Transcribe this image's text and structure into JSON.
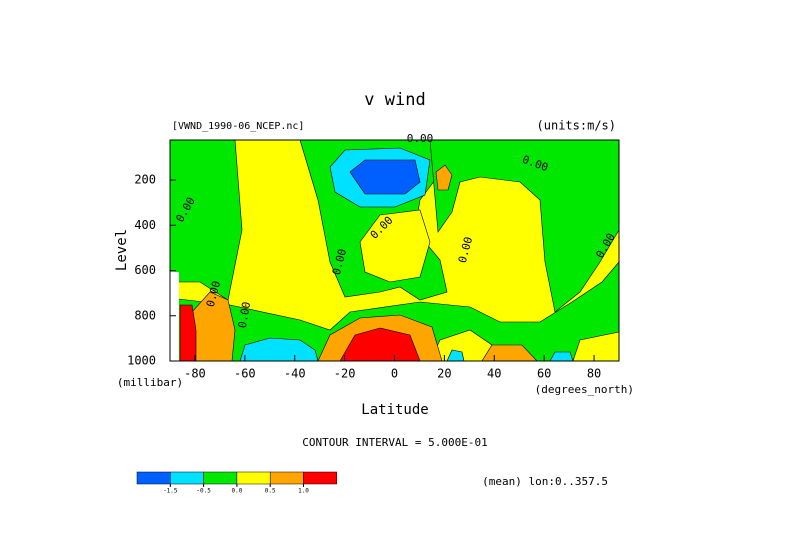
{
  "chart_data": {
    "type": "contour",
    "title": "v wind",
    "subtitle": "[VWND_1990-06_NCEP.nc]",
    "units": "(units:m/s)",
    "x_label": "Latitude",
    "x_units": "(degrees_north)",
    "y_label": "Level",
    "y_units": "(millibar)",
    "xlim": [
      -90,
      90
    ],
    "ylim": [
      1000,
      23
    ],
    "xticks": [
      -80,
      -60,
      -40,
      -20,
      0,
      20,
      40,
      60,
      80
    ],
    "yticks": [
      200,
      400,
      600,
      800,
      1000
    ],
    "contour_interval": "CONTOUR INTERVAL = 5.000E-01",
    "note": "(mean) lon:0..357.5",
    "contour_labels": [
      "0.00",
      "0.00",
      "0.00",
      "0.00",
      "0.00",
      "0.00",
      "0.00",
      "0.00",
      "0.00"
    ],
    "colorbar": {
      "colors": [
        "#0060ff",
        "#00e0ff",
        "#00e800",
        "#ffff00",
        "#ffa500",
        "#ff0000"
      ],
      "ticks": [
        -1.5,
        -0.5,
        {
          "value": 0,
          "label": "0.0"
        },
        0.5,
        {
          "value": 1,
          "label": "1.0"
        }
      ]
    }
  }
}
